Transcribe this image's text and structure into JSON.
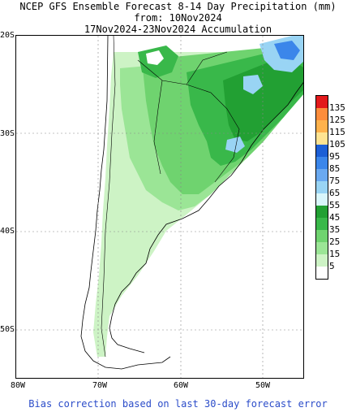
{
  "titles": {
    "line1": "NCEP GFS Ensemble Forecast 8-14 Day Precipitation (mm)",
    "line2": "from: 10Nov2024",
    "line3": "17Nov2024-23Nov2024 Accumulation"
  },
  "axes": {
    "lat_labels": [
      "20S",
      "30S",
      "40S",
      "50S"
    ],
    "lon_labels": [
      "80W",
      "70W",
      "60W",
      "50W"
    ]
  },
  "legend": {
    "labels": [
      "135",
      "125",
      "115",
      "105",
      "95",
      "85",
      "75",
      "65",
      "55",
      "45",
      "35",
      "25",
      "15",
      "5"
    ],
    "colors": [
      "#e31a1c",
      "#fd8d3c",
      "#feb24c",
      "#fee391",
      "#1c5fd6",
      "#3b86ea",
      "#6aa9f0",
      "#99d4f4",
      "#d9f6fb",
      "#22a033",
      "#39b84a",
      "#6fd36f",
      "#9be596",
      "#cdf3c5",
      "#ffffff"
    ]
  },
  "footer": "Bias correction based on last 30-day forecast error"
}
